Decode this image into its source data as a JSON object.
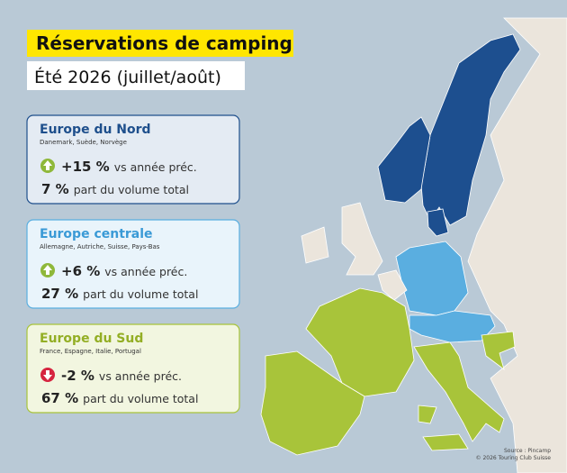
{
  "header": {
    "title": "Réservations de camping",
    "subtitle": "Été 2026 (juillet/août)"
  },
  "cards": [
    {
      "title": "Europe du Nord",
      "countries": "Danemark, Suède, Norvège",
      "change": "+15 %",
      "change_label": "vs année préc.",
      "share": "7 %",
      "share_label": "part du volume total"
    },
    {
      "title": "Europe centrale",
      "countries": "Allemagne, Autriche, Suisse, Pays-Bas",
      "change": "+6 %",
      "change_label": "vs année préc.",
      "share": "27 %",
      "share_label": "part du volume total"
    },
    {
      "title": "Europe du Sud",
      "countries": "France, Espagne, Italie, Portugal",
      "change": "-2 %",
      "change_label": "vs année préc.",
      "share": "67 %",
      "share_label": "part du volume total"
    }
  ],
  "source": {
    "line1": "Source : Pincamp",
    "line2": "© 2026 Touring Club Suisse"
  }
}
